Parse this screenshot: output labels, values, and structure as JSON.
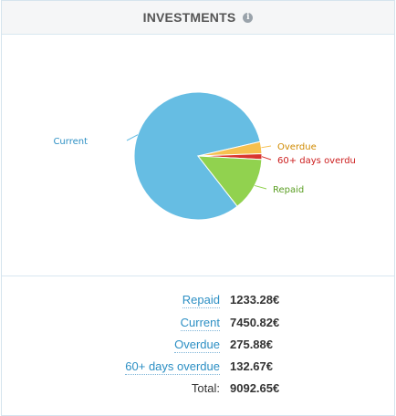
{
  "widget": {
    "title": "INVESTMENTS",
    "info_icon": "info-icon"
  },
  "chart_data": {
    "type": "pie",
    "slices": [
      {
        "label": "Current",
        "value": 7450.82,
        "color": "#66bde3"
      },
      {
        "label": "Overdue",
        "value": 275.88,
        "color": "#f6c04f"
      },
      {
        "label": "60+ days overdu",
        "value": 132.67,
        "color": "#d9342f"
      },
      {
        "label": "Repaid",
        "value": 1233.28,
        "color": "#91d24f"
      }
    ],
    "label_colors": {
      "Current": "#2c8fc4",
      "Overdue": "#d08a00",
      "60+ days overdu": "#cc1d1d",
      "Repaid": "#5a9e22"
    }
  },
  "summary": {
    "rows": [
      {
        "label": "Repaid",
        "value": "1233.28€",
        "link": true
      },
      {
        "label": "Current",
        "value": "7450.82€",
        "link": true
      },
      {
        "label": "Overdue",
        "value": "275.88€",
        "link": true
      },
      {
        "label": "60+ days overdue",
        "value": "132.67€",
        "link": true
      },
      {
        "label": "Total:",
        "value": "9092.65€",
        "link": false
      }
    ]
  }
}
